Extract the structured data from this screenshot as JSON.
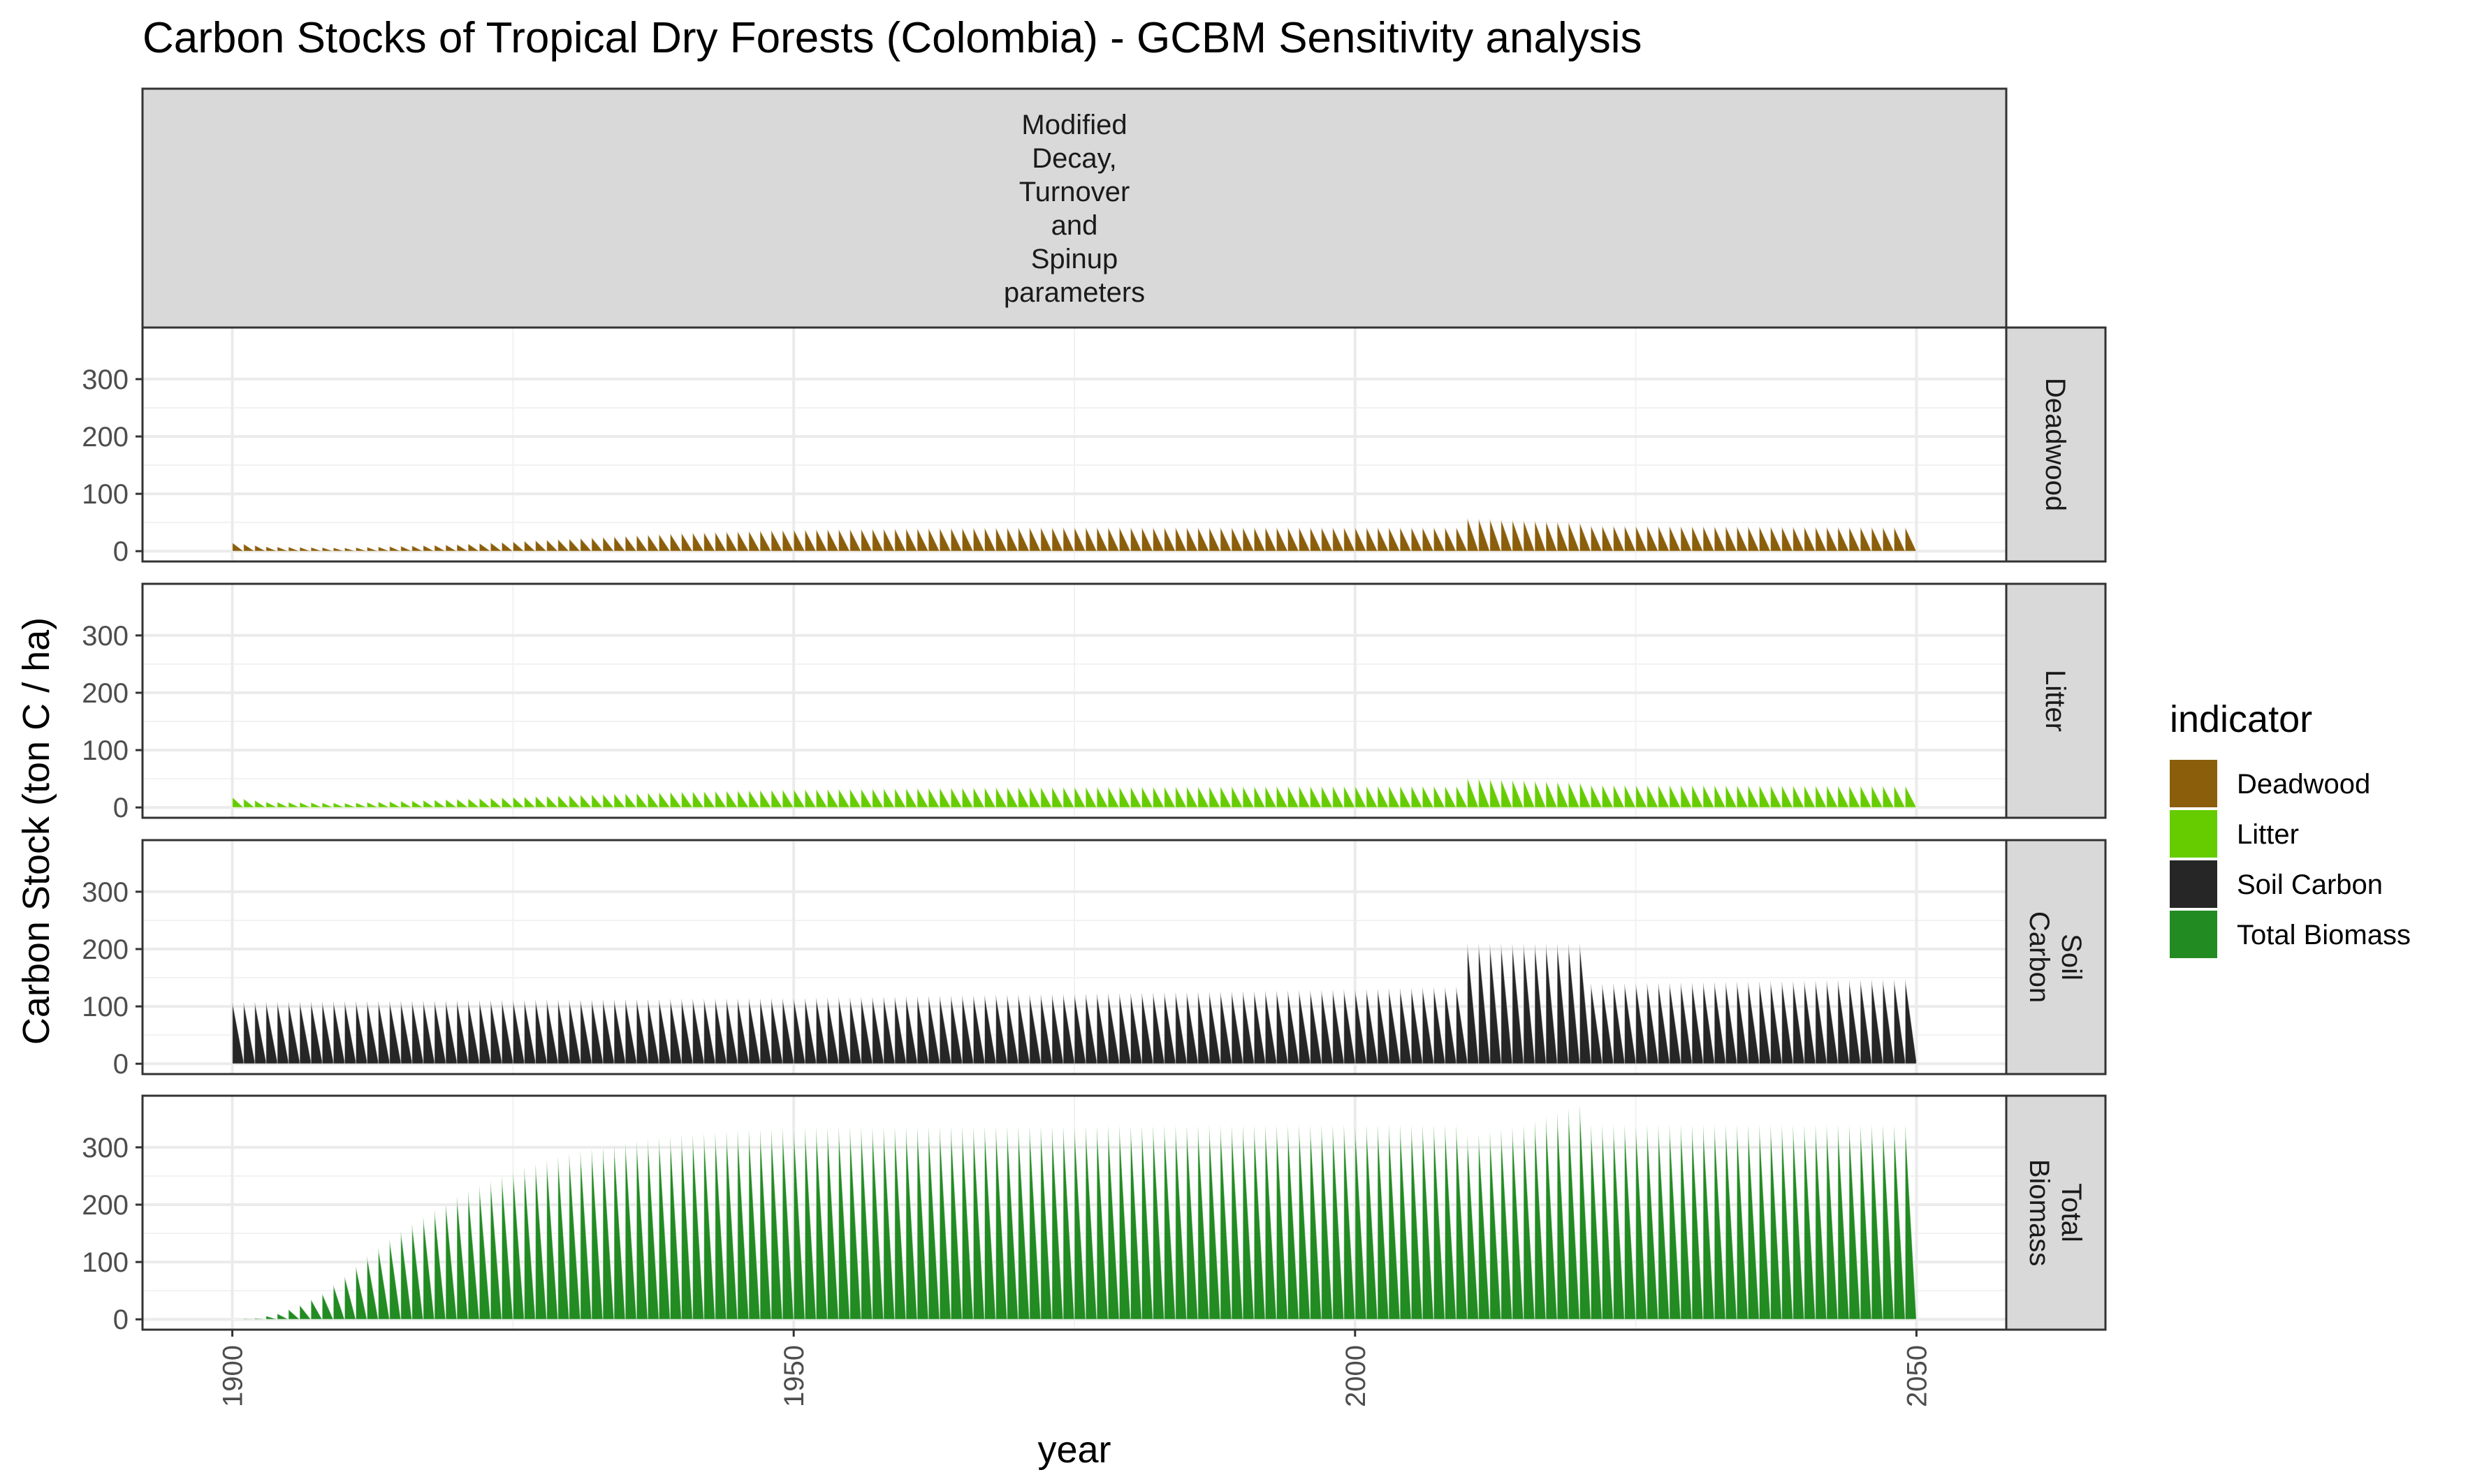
{
  "chart_data": {
    "type": "area",
    "title": "Carbon Stocks of Tropical Dry Forests (Colombia) - GCBM Sensitivity analysis",
    "facet_column_label": [
      "Modified",
      "Decay,",
      "Turnover",
      "and",
      "Spinup",
      "parameters"
    ],
    "xlabel": "year",
    "ylabel": "Carbon Stock (ton C / ha)",
    "x_ticks": [
      1900,
      1950,
      2000,
      2050
    ],
    "y_ticks": [
      0,
      100,
      200,
      300
    ],
    "xlim": [
      1892,
      2058
    ],
    "ylim": [
      -18,
      390
    ],
    "grid": true,
    "legend_position": "right",
    "legend": {
      "title": "indicator",
      "entries": [
        "Deadwood",
        "Litter",
        "Soil Carbon",
        "Total Biomass"
      ]
    },
    "colors": {
      "Deadwood": "#8B5E0B",
      "Litter": "#66CC00",
      "Soil Carbon": "#262626",
      "Total Biomass": "#228B22"
    },
    "series": [
      {
        "name": "Deadwood",
        "facet_label": [
          "Deadwood"
        ],
        "cycle_min": 0,
        "annual_peak": [
          [
            1900,
            15
          ],
          [
            1903,
            8
          ],
          [
            1910,
            6
          ],
          [
            1920,
            12
          ],
          [
            1930,
            22
          ],
          [
            1940,
            32
          ],
          [
            1950,
            38
          ],
          [
            1970,
            42
          ],
          [
            2000,
            42
          ],
          [
            2009,
            42
          ],
          [
            2010,
            58
          ],
          [
            2020,
            50
          ],
          [
            2021,
            45
          ],
          [
            2050,
            42
          ]
        ]
      },
      {
        "name": "Litter",
        "facet_label": [
          "Litter"
        ],
        "cycle_min": 0,
        "annual_peak": [
          [
            1900,
            18
          ],
          [
            1903,
            10
          ],
          [
            1910,
            8
          ],
          [
            1920,
            15
          ],
          [
            1930,
            22
          ],
          [
            1940,
            28
          ],
          [
            1950,
            32
          ],
          [
            1970,
            36
          ],
          [
            2000,
            38
          ],
          [
            2009,
            38
          ],
          [
            2010,
            52
          ],
          [
            2020,
            44
          ],
          [
            2021,
            40
          ],
          [
            2050,
            38
          ]
        ]
      },
      {
        "name": "Soil Carbon",
        "facet_label": [
          "Soil",
          "Carbon"
        ],
        "cycle_min": 5,
        "annual_peak": [
          [
            1900,
            108
          ],
          [
            1950,
            115
          ],
          [
            2000,
            130
          ],
          [
            2009,
            135
          ],
          [
            2010,
            210
          ],
          [
            2020,
            210
          ],
          [
            2021,
            140
          ],
          [
            2050,
            148
          ]
        ]
      },
      {
        "name": "Total Biomass",
        "facet_label": [
          "Total",
          "Biomass"
        ],
        "cycle_min": 0,
        "annual_peak": [
          [
            1900,
            0
          ],
          [
            1902,
            2
          ],
          [
            1904,
            10
          ],
          [
            1906,
            25
          ],
          [
            1908,
            45
          ],
          [
            1910,
            75
          ],
          [
            1912,
            110
          ],
          [
            1915,
            155
          ],
          [
            1920,
            215
          ],
          [
            1925,
            260
          ],
          [
            1930,
            290
          ],
          [
            1935,
            310
          ],
          [
            1940,
            322
          ],
          [
            1945,
            330
          ],
          [
            1950,
            335
          ],
          [
            2000,
            340
          ],
          [
            2009,
            340
          ],
          [
            2010,
            320
          ],
          [
            2015,
            340
          ],
          [
            2020,
            375
          ],
          [
            2021,
            340
          ],
          [
            2050,
            340
          ]
        ]
      }
    ]
  }
}
